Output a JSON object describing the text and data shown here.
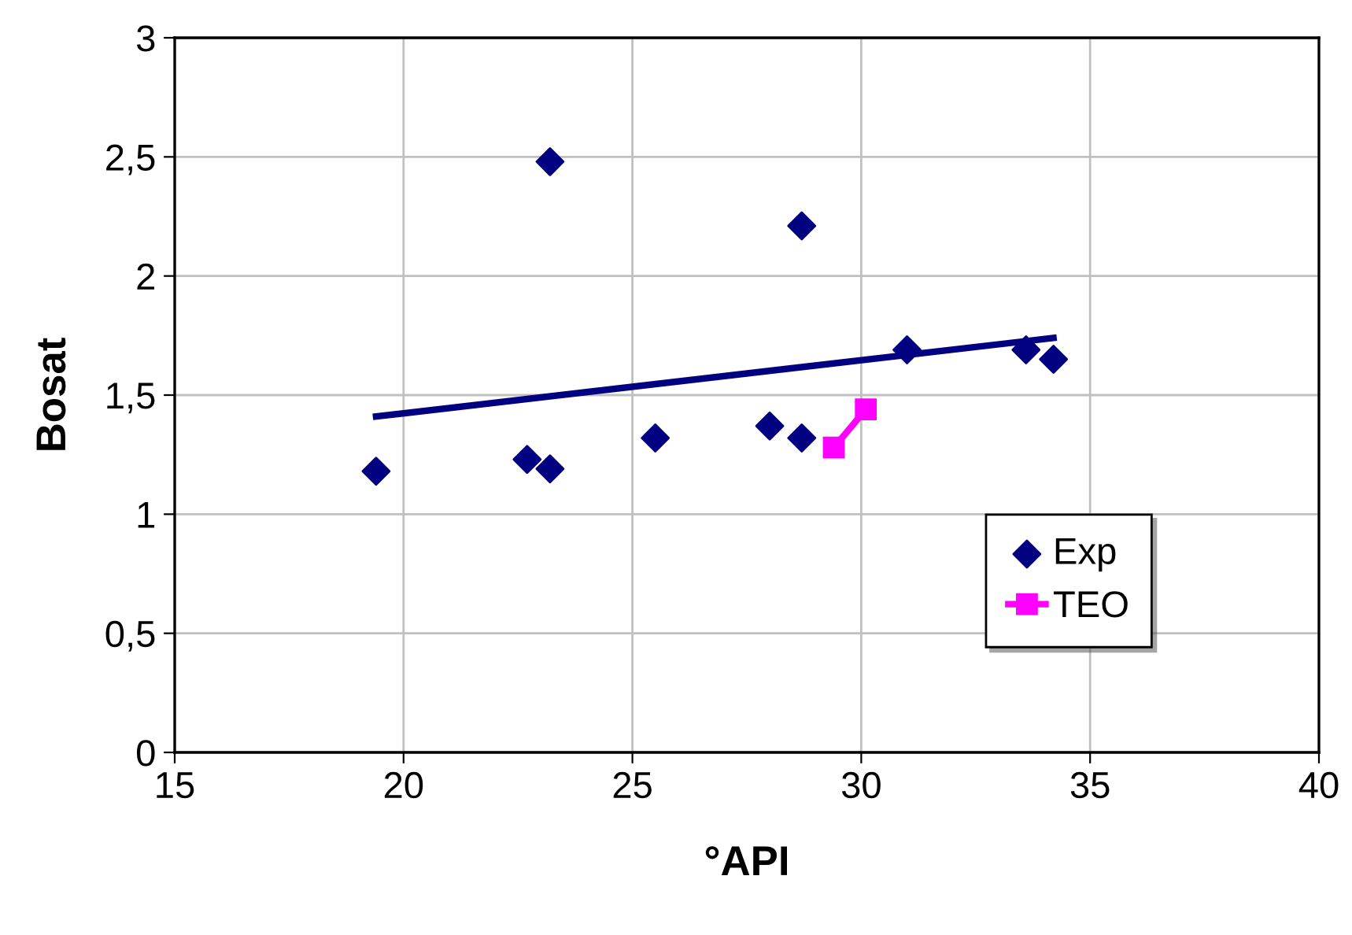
{
  "chart_data": {
    "type": "scatter",
    "xlabel": "°API",
    "ylabel": "Bosat",
    "xlim": [
      15,
      40
    ],
    "xticks": [
      15,
      20,
      25,
      30,
      35,
      40
    ],
    "ylim": [
      0,
      3
    ],
    "yticks": [
      0,
      {
        "value": 0.5,
        "label": "0,5"
      },
      1,
      {
        "value": 1.5,
        "label": "1,5"
      },
      2,
      {
        "value": 2.5,
        "label": "2,5"
      },
      3
    ],
    "grid": true,
    "legend": "right",
    "series": [
      {
        "name": "Exp",
        "marker": "diamond",
        "color": "#000080",
        "x": [
          19.4,
          22.7,
          23.2,
          23.2,
          25.5,
          28.0,
          28.7,
          28.7,
          31.0,
          33.6,
          34.2
        ],
        "values": [
          1.18,
          1.23,
          1.19,
          2.48,
          1.32,
          1.37,
          1.32,
          2.21,
          1.69,
          1.69,
          1.65
        ]
      },
      {
        "name": "TEO",
        "type": "line",
        "marker": "square",
        "color": "#ff00ff",
        "x": [
          29.4,
          30.1
        ],
        "values": [
          1.28,
          1.44
        ]
      },
      {
        "type": "line",
        "marker": "none",
        "color": "#000080",
        "x": [
          19.4,
          34.2
        ],
        "values": [
          1.41,
          1.74
        ]
      }
    ]
  }
}
